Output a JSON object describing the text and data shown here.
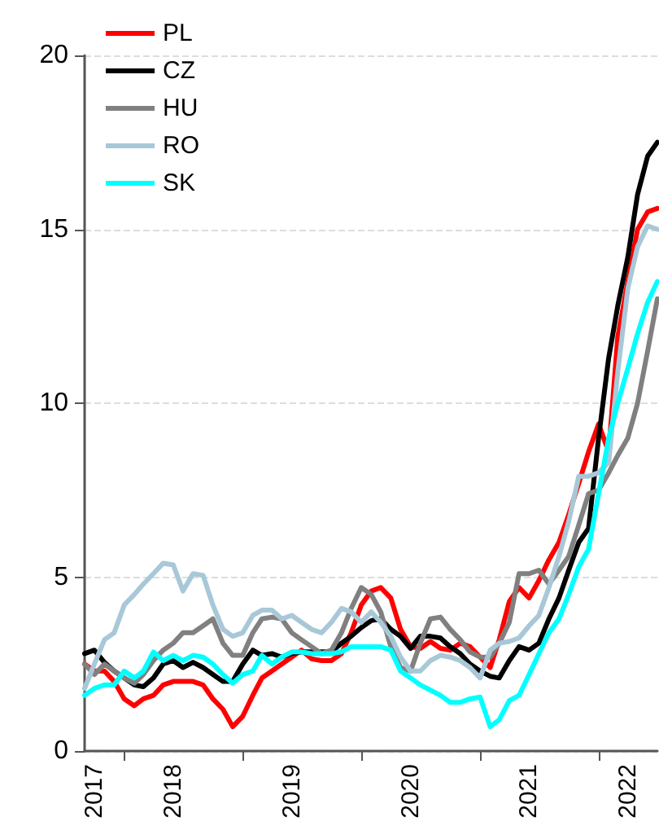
{
  "chart_data": {
    "type": "line",
    "x": [
      "2017-09",
      "2017-10",
      "2017-11",
      "2017-12",
      "2018-01",
      "2018-02",
      "2018-03",
      "2018-04",
      "2018-05",
      "2018-06",
      "2018-07",
      "2018-08",
      "2018-09",
      "2018-10",
      "2018-11",
      "2018-12",
      "2019-01",
      "2019-02",
      "2019-03",
      "2019-04",
      "2019-05",
      "2019-06",
      "2019-07",
      "2019-08",
      "2019-09",
      "2019-10",
      "2019-11",
      "2019-12",
      "2020-01",
      "2020-02",
      "2020-03",
      "2020-04",
      "2020-05",
      "2020-06",
      "2020-07",
      "2020-08",
      "2020-09",
      "2020-10",
      "2020-11",
      "2020-12",
      "2021-01",
      "2021-02",
      "2021-03",
      "2021-04",
      "2021-05",
      "2021-06",
      "2021-07",
      "2021-08",
      "2021-09",
      "2021-10",
      "2021-11",
      "2021-12",
      "2022-01",
      "2022-02",
      "2022-03",
      "2022-04",
      "2022-05",
      "2022-06",
      "2022-07"
    ],
    "series": [
      {
        "name": "PL",
        "color": "#ff0000",
        "values": [
          2.5,
          2.3,
          2.3,
          2.0,
          1.5,
          1.3,
          1.5,
          1.6,
          1.9,
          2.0,
          2.0,
          2.0,
          1.9,
          1.5,
          1.2,
          0.7,
          1.0,
          1.6,
          2.1,
          2.3,
          2.5,
          2.7,
          2.9,
          2.65,
          2.6,
          2.6,
          2.8,
          3.4,
          4.2,
          4.6,
          4.7,
          4.4,
          3.5,
          3.0,
          2.95,
          3.15,
          2.95,
          2.9,
          3.1,
          3.0,
          2.7,
          2.4,
          3.2,
          4.3,
          4.7,
          4.4,
          4.9,
          5.5,
          6.0,
          6.8,
          7.7,
          8.6,
          9.4,
          8.6,
          11.9,
          13.5,
          15.0,
          15.5,
          15.6
        ]
      },
      {
        "name": "CZ",
        "color": "#000000",
        "values": [
          2.8,
          2.9,
          2.55,
          2.3,
          2.1,
          1.9,
          1.85,
          2.1,
          2.5,
          2.6,
          2.4,
          2.55,
          2.4,
          2.2,
          2.0,
          2.0,
          2.5,
          2.9,
          2.75,
          2.8,
          2.7,
          2.8,
          2.85,
          2.85,
          2.85,
          2.85,
          3.1,
          3.3,
          3.55,
          3.75,
          3.8,
          3.5,
          3.3,
          2.95,
          3.3,
          3.3,
          3.25,
          3.0,
          2.8,
          2.5,
          2.3,
          2.15,
          2.1,
          2.6,
          3.0,
          2.9,
          3.1,
          3.8,
          4.4,
          5.2,
          6.0,
          6.4,
          9.0,
          11.3,
          12.8,
          14.2,
          16.0,
          17.1,
          17.5
        ]
      },
      {
        "name": "HU",
        "color": "#808080",
        "values": [
          2.5,
          2.2,
          2.5,
          2.3,
          2.1,
          1.95,
          2.2,
          2.6,
          2.9,
          3.1,
          3.4,
          3.4,
          3.6,
          3.8,
          3.1,
          2.75,
          2.75,
          3.4,
          3.8,
          3.85,
          3.8,
          3.4,
          3.2,
          3.0,
          2.8,
          2.9,
          3.4,
          4.1,
          4.7,
          4.5,
          4.0,
          3.0,
          2.4,
          2.3,
          3.1,
          3.8,
          3.85,
          3.5,
          3.2,
          2.85,
          2.7,
          2.7,
          3.1,
          3.7,
          5.1,
          5.1,
          5.2,
          4.8,
          5.2,
          5.6,
          6.5,
          7.4,
          7.5,
          8.0,
          8.5,
          9.0,
          10.0,
          11.5,
          13.0
        ]
      },
      {
        "name": "RO",
        "color": "#a8c8d8",
        "values": [
          1.8,
          2.5,
          3.2,
          3.4,
          4.2,
          4.5,
          4.8,
          5.1,
          5.4,
          5.35,
          4.6,
          5.1,
          5.05,
          4.2,
          3.5,
          3.3,
          3.4,
          3.9,
          4.05,
          4.05,
          3.8,
          3.9,
          3.7,
          3.5,
          3.4,
          3.7,
          4.1,
          4.0,
          3.7,
          4.0,
          3.7,
          3.3,
          2.7,
          2.3,
          2.3,
          2.6,
          2.75,
          2.7,
          2.6,
          2.4,
          2.1,
          2.9,
          3.1,
          3.15,
          3.25,
          3.6,
          3.9,
          4.7,
          5.6,
          6.6,
          7.9,
          7.9,
          8.0,
          8.3,
          10.9,
          13.3,
          14.5,
          15.1,
          15.0
        ]
      },
      {
        "name": "SK",
        "color": "#00ffff",
        "values": [
          1.6,
          1.8,
          1.9,
          1.9,
          2.3,
          2.1,
          2.3,
          2.85,
          2.6,
          2.75,
          2.6,
          2.75,
          2.7,
          2.5,
          2.2,
          1.95,
          2.2,
          2.3,
          2.75,
          2.5,
          2.7,
          2.85,
          2.85,
          2.8,
          2.8,
          2.8,
          2.85,
          3.0,
          3.0,
          3.0,
          3.0,
          2.9,
          2.3,
          2.1,
          1.9,
          1.75,
          1.6,
          1.4,
          1.4,
          1.5,
          1.55,
          0.7,
          0.9,
          1.45,
          1.6,
          2.2,
          2.8,
          3.4,
          3.8,
          4.5,
          5.3,
          5.8,
          7.4,
          9.0,
          10.0,
          11.0,
          12.0,
          12.9,
          13.5
        ]
      }
    ],
    "xlim": [
      "2017-09",
      "2022-07"
    ],
    "xticks": [
      {
        "value": "2017-10",
        "label": "2017"
      },
      {
        "value": "2018-01",
        "label": null
      },
      {
        "value": "2018-06",
        "label": "2018"
      },
      {
        "value": "2019-01",
        "label": null
      },
      {
        "value": "2019-06",
        "label": "2019"
      },
      {
        "value": "2020-01",
        "label": null
      },
      {
        "value": "2020-06",
        "label": "2020"
      },
      {
        "value": "2021-01",
        "label": null
      },
      {
        "value": "2021-06",
        "label": "2021"
      },
      {
        "value": "2022-01",
        "label": null
      },
      {
        "value": "2022-04",
        "label": "2022"
      }
    ],
    "ylim": [
      0,
      20
    ],
    "yticks": [
      0,
      5,
      10,
      15,
      20
    ],
    "grid": "y",
    "legend": "top left",
    "marker": "none",
    "line_style": "solid"
  }
}
